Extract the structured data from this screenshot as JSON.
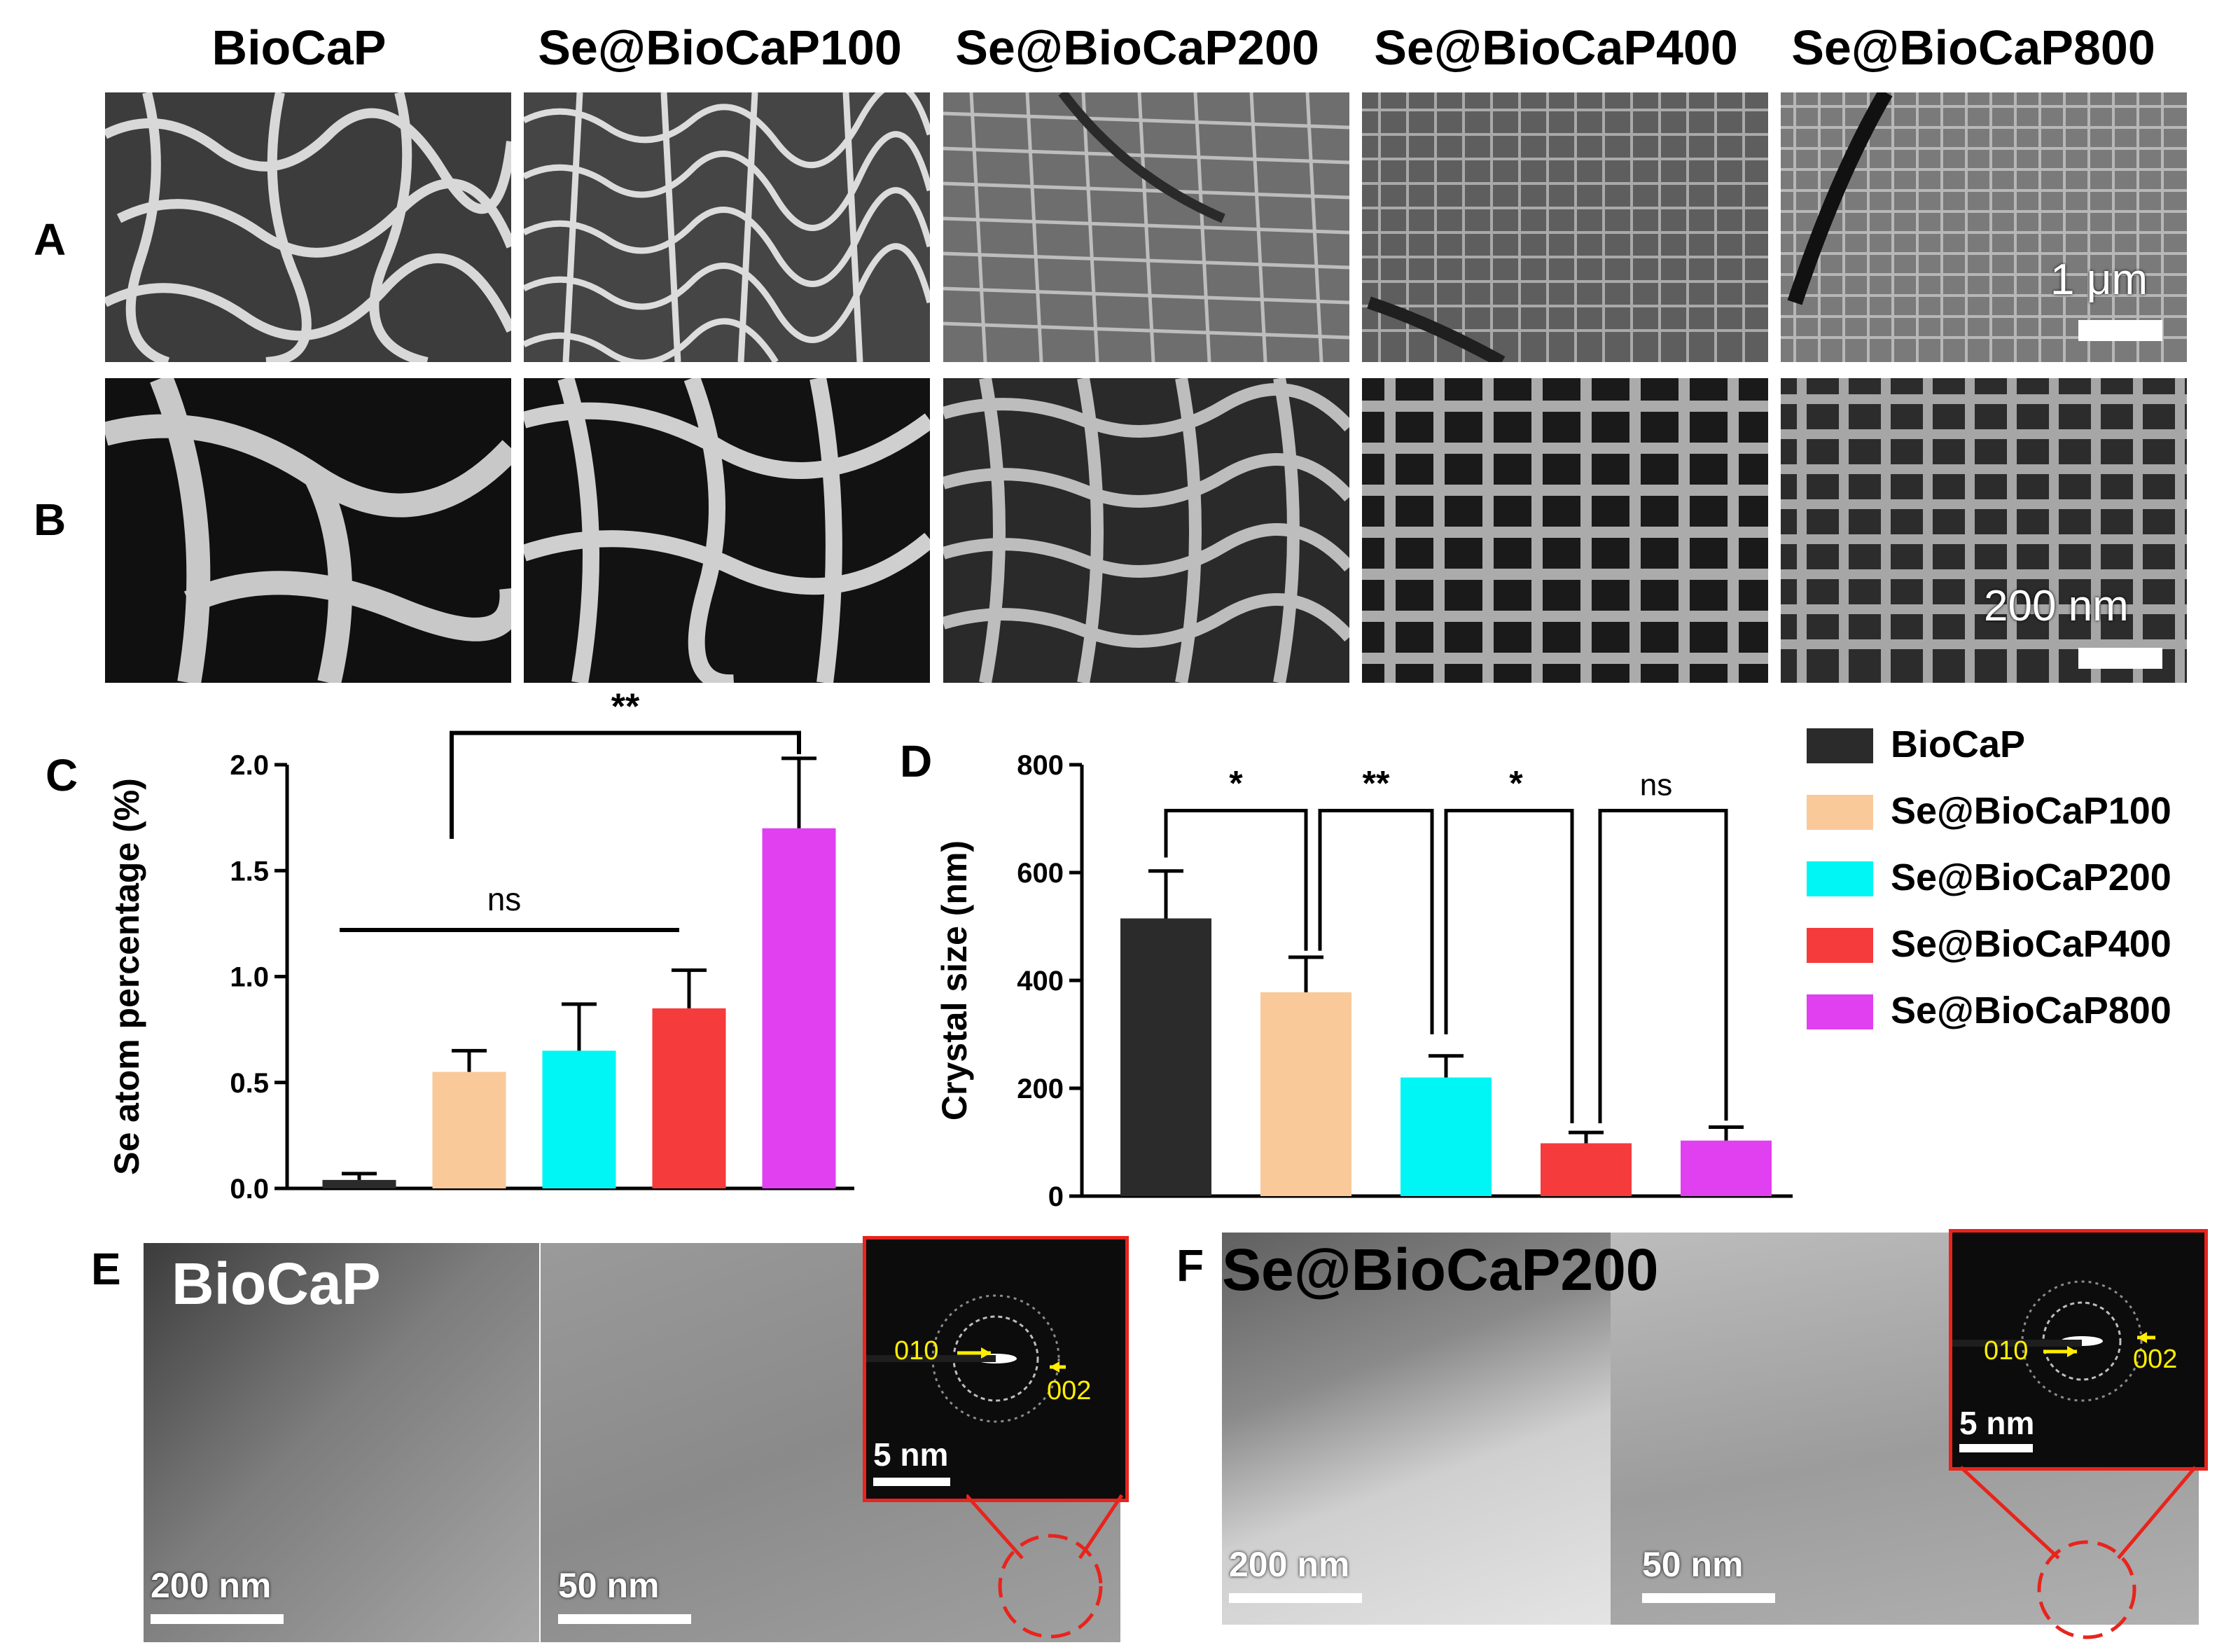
{
  "column_titles": [
    "BioCaP",
    "Se@BioCaP100",
    "Se@BioCaP200",
    "Se@BioCaP400",
    "Se@BioCaP800"
  ],
  "panels": {
    "A": {
      "letter": "A",
      "scale_label": "1 μm"
    },
    "B": {
      "letter": "B",
      "scale_label": "200 nm"
    },
    "C": {
      "letter": "C"
    },
    "D": {
      "letter": "D"
    },
    "E": {
      "letter": "E",
      "title": "BioCaP",
      "scale_left": "200 nm",
      "scale_right": "50 nm",
      "inset_scale": "5 nm",
      "inset_label_1": "010",
      "inset_label_2": "002"
    },
    "F": {
      "letter": "F",
      "title": "Se@BioCaP200",
      "scale_left": "200 nm",
      "scale_right": "50 nm",
      "inset_scale": "5 nm",
      "inset_label_1": "010",
      "inset_label_2": "002"
    }
  },
  "legend": {
    "entries": [
      "BioCaP",
      "Se@BioCaP100",
      "Se@BioCaP200",
      "Se@BioCaP400",
      "Se@BioCaP800"
    ]
  },
  "colors": {
    "BioCaP": "#2b2b2b",
    "Se@BioCaP100": "#f9c99a",
    "Se@BioCaP200": "#00f5f5",
    "Se@BioCaP400": "#f53b3b",
    "Se@BioCaP800": "#e040f0",
    "inset_frame": "#e8241c",
    "inset_arrow": "#ffee00"
  },
  "chart_data": [
    {
      "panel": "C",
      "type": "bar",
      "categories": [
        "BioCaP",
        "Se@BioCaP100",
        "Se@BioCaP200",
        "Se@BioCaP400",
        "Se@BioCaP800"
      ],
      "values": [
        0.04,
        0.55,
        0.65,
        0.85,
        1.7
      ],
      "errors": [
        0.03,
        0.1,
        0.22,
        0.18,
        0.33
      ],
      "ylabel": "Se atom percentage (%)",
      "xlabel": "",
      "ylim": [
        0,
        2.0
      ],
      "yticks": [
        "0.0",
        "0.5",
        "1.0",
        "1.5",
        "2.0"
      ],
      "annotations": [
        "ns",
        "**"
      ]
    },
    {
      "panel": "D",
      "type": "bar",
      "categories": [
        "BioCaP",
        "Se@BioCaP100",
        "Se@BioCaP200",
        "Se@BioCaP400",
        "Se@BioCaP800"
      ],
      "values": [
        515,
        378,
        220,
        98,
        103
      ],
      "errors": [
        88,
        65,
        40,
        20,
        25
      ],
      "ylabel": "Crystal size (nm)",
      "xlabel": "",
      "ylim": [
        0,
        800
      ],
      "yticks": [
        "0",
        "200",
        "400",
        "600",
        "800"
      ],
      "annotations": [
        "*",
        "**",
        "*",
        "ns"
      ]
    }
  ]
}
